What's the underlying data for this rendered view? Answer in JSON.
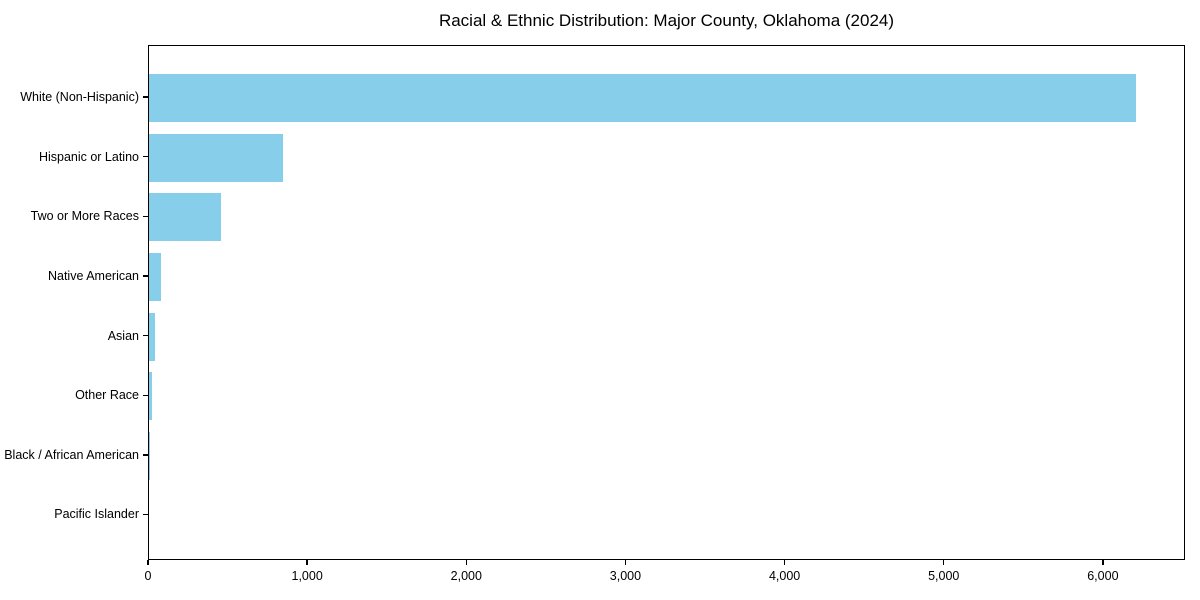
{
  "chart_data": {
    "type": "bar",
    "orientation": "horizontal",
    "title": "Racial & Ethnic Distribution: Major County, Oklahoma (2024)",
    "categories": [
      "White (Non-Hispanic)",
      "Hispanic or Latino",
      "Two or More Races",
      "Native American",
      "Asian",
      "Other Race",
      "Black / African American",
      "Pacific Islander"
    ],
    "values": [
      6200,
      840,
      450,
      75,
      40,
      20,
      5,
      0
    ],
    "xlabel": "",
    "ylabel": "",
    "xlim": [
      0,
      6516
    ],
    "x_ticks": [
      0,
      1000,
      2000,
      3000,
      4000,
      5000,
      6000
    ],
    "x_tick_labels": [
      "0",
      "1,000",
      "2,000",
      "3,000",
      "4,000",
      "5,000",
      "6,000"
    ],
    "bar_color": "#87CEEB",
    "axis_color": "#000000",
    "background_color": "#ffffff",
    "grid": false,
    "legend": "none"
  }
}
